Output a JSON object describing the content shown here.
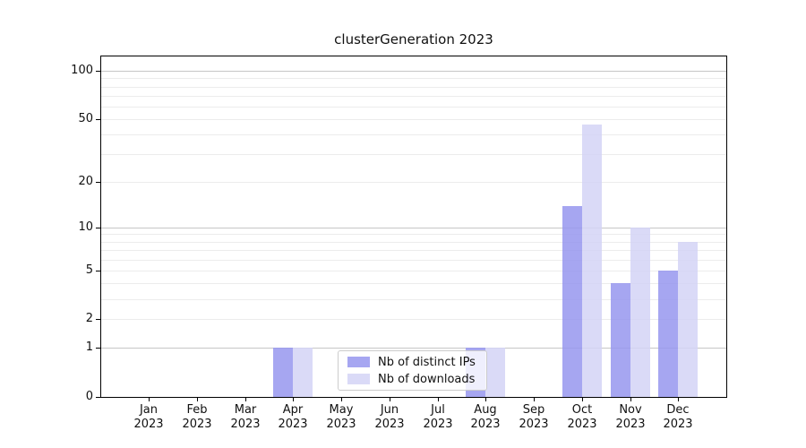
{
  "title": "clusterGeneration 2023",
  "chart_data": {
    "type": "bar",
    "title": "clusterGeneration 2023",
    "categories": [
      "Jan 2023",
      "Feb 2023",
      "Mar 2023",
      "Apr 2023",
      "May 2023",
      "Jun 2023",
      "Jul 2023",
      "Aug 2023",
      "Sep 2023",
      "Oct 2023",
      "Nov 2023",
      "Dec 2023"
    ],
    "series": [
      {
        "name": "Nb of distinct IPs",
        "color": "#9696ee",
        "values": [
          0,
          0,
          0,
          1,
          0,
          0,
          0,
          1,
          0,
          14,
          4,
          5
        ]
      },
      {
        "name": "Nb of downloads",
        "color": "#d4d4f6",
        "values": [
          0,
          0,
          0,
          1,
          0,
          0,
          0,
          1,
          0,
          46,
          10,
          8
        ]
      }
    ],
    "y_scale": "symlog",
    "ylim": [
      0,
      123
    ],
    "y_tick_labels": [
      0,
      1,
      2,
      5,
      10,
      20,
      50,
      100
    ],
    "y_major_gridlines": [
      1,
      10,
      100
    ],
    "y_minor_gridlines": [
      2,
      3,
      4,
      5,
      6,
      7,
      8,
      9,
      20,
      30,
      40,
      50,
      60,
      70,
      80,
      90
    ],
    "grid": true,
    "legend_position": "inside-bottom-center",
    "xlabel": "",
    "ylabel": ""
  },
  "colors": {
    "major_grid": "#c6c6c6",
    "minor_grid": "#ececec",
    "axis": "#000000",
    "legend_border": "#cccccc",
    "distinct_ips": "#9696ee",
    "downloads": "#d4d4f6"
  }
}
